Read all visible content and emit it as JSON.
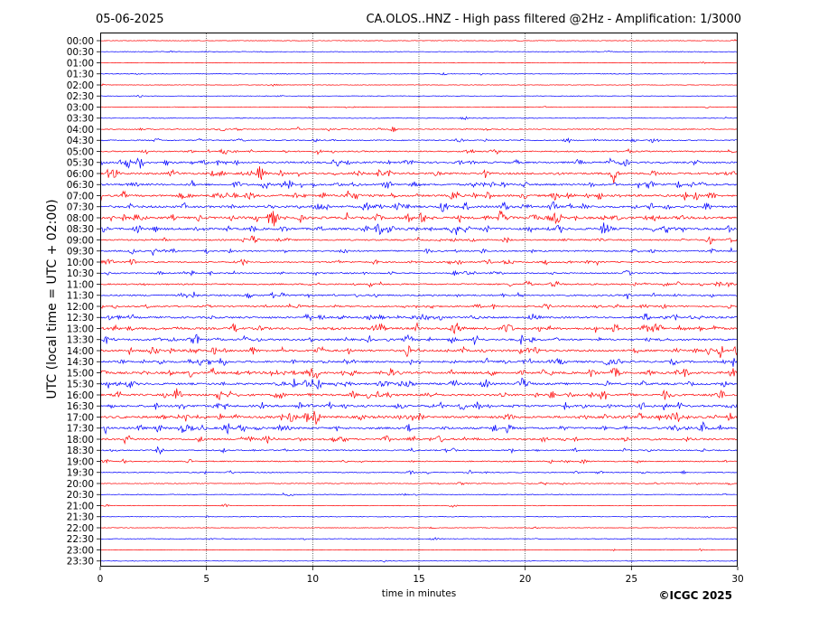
{
  "header": {
    "date": "05-06-2025",
    "title": "CA.OLOS..HNZ - High pass filtered @2Hz - Amplification: 1/3000"
  },
  "footer": {
    "copyright": "©ICGC 2025"
  },
  "colors": {
    "trace_red": "#ff0000",
    "trace_blue": "#0000ff",
    "grid": "#000000"
  },
  "chart_data": {
    "type": "line",
    "title": "CA.OLOS..HNZ - High pass filtered @2Hz - Amplification: 1/3000",
    "xlabel": "time in minutes",
    "ylabel": "UTC (local time = UTC + 02:00)",
    "xlim": [
      0,
      30
    ],
    "x_ticks": [
      "0",
      "5",
      "10",
      "15",
      "20",
      "25",
      "30"
    ],
    "grid": "vertical dotted at every 5 minutes",
    "row_interval_minutes": 30,
    "rows": [
      {
        "label": "00:00",
        "color": "red",
        "activity": 0.05
      },
      {
        "label": "00:30",
        "color": "blue",
        "activity": 0.08
      },
      {
        "label": "01:00",
        "color": "red",
        "activity": 0.06
      },
      {
        "label": "01:30",
        "color": "blue",
        "activity": 0.08
      },
      {
        "label": "02:00",
        "color": "red",
        "activity": 0.05
      },
      {
        "label": "02:30",
        "color": "blue",
        "activity": 0.04
      },
      {
        "label": "03:00",
        "color": "red",
        "activity": 0.12
      },
      {
        "label": "03:30",
        "color": "blue",
        "activity": 0.08
      },
      {
        "label": "04:00",
        "color": "red",
        "activity": 0.25
      },
      {
        "label": "04:30",
        "color": "blue",
        "activity": 0.35
      },
      {
        "label": "05:00",
        "color": "red",
        "activity": 0.45
      },
      {
        "label": "05:30",
        "color": "blue",
        "activity": 0.7
      },
      {
        "label": "06:00",
        "color": "red",
        "activity": 0.8
      },
      {
        "label": "06:30",
        "color": "blue",
        "activity": 0.75
      },
      {
        "label": "07:00",
        "color": "red",
        "activity": 0.85
      },
      {
        "label": "07:30",
        "color": "blue",
        "activity": 0.9
      },
      {
        "label": "08:00",
        "color": "red",
        "activity": 1.0
      },
      {
        "label": "08:30",
        "color": "blue",
        "activity": 0.9
      },
      {
        "label": "09:00",
        "color": "red",
        "activity": 0.5
      },
      {
        "label": "09:30",
        "color": "blue",
        "activity": 0.55
      },
      {
        "label": "10:00",
        "color": "red",
        "activity": 0.5
      },
      {
        "label": "10:30",
        "color": "blue",
        "activity": 0.45
      },
      {
        "label": "11:00",
        "color": "red",
        "activity": 0.5
      },
      {
        "label": "11:30",
        "color": "blue",
        "activity": 0.55
      },
      {
        "label": "12:00",
        "color": "red",
        "activity": 0.5
      },
      {
        "label": "12:30",
        "color": "blue",
        "activity": 0.75
      },
      {
        "label": "13:00",
        "color": "red",
        "activity": 0.9
      },
      {
        "label": "13:30",
        "color": "blue",
        "activity": 0.75
      },
      {
        "label": "14:00",
        "color": "red",
        "activity": 0.85
      },
      {
        "label": "14:30",
        "color": "blue",
        "activity": 0.75
      },
      {
        "label": "15:00",
        "color": "red",
        "activity": 0.9
      },
      {
        "label": "15:30",
        "color": "blue",
        "activity": 0.85
      },
      {
        "label": "16:00",
        "color": "red",
        "activity": 0.85
      },
      {
        "label": "16:30",
        "color": "blue",
        "activity": 0.85
      },
      {
        "label": "17:00",
        "color": "red",
        "activity": 0.95
      },
      {
        "label": "17:30",
        "color": "blue",
        "activity": 0.85
      },
      {
        "label": "18:00",
        "color": "red",
        "activity": 0.75
      },
      {
        "label": "18:30",
        "color": "blue",
        "activity": 0.4
      },
      {
        "label": "19:00",
        "color": "red",
        "activity": 0.35
      },
      {
        "label": "19:30",
        "color": "blue",
        "activity": 0.25
      },
      {
        "label": "20:00",
        "color": "red",
        "activity": 0.2
      },
      {
        "label": "20:30",
        "color": "blue",
        "activity": 0.15
      },
      {
        "label": "21:00",
        "color": "red",
        "activity": 0.1
      },
      {
        "label": "21:30",
        "color": "blue",
        "activity": 0.06
      },
      {
        "label": "22:00",
        "color": "red",
        "activity": 0.05
      },
      {
        "label": "22:30",
        "color": "blue",
        "activity": 0.1
      },
      {
        "label": "23:00",
        "color": "red",
        "activity": 0.04
      },
      {
        "label": "23:30",
        "color": "blue",
        "activity": 0.05
      }
    ]
  }
}
